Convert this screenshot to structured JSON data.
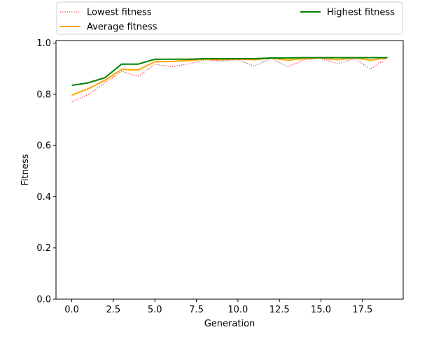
{
  "chart_data": {
    "type": "line",
    "xlabel": "Generation",
    "ylabel": "Fitness",
    "xlim": [
      -0.95,
      19.95
    ],
    "ylim": [
      0.0,
      1.01
    ],
    "xticks": [
      0.0,
      2.5,
      5.0,
      7.5,
      10.0,
      12.5,
      15.0,
      17.5
    ],
    "xtick_labels": [
      "0.0",
      "2.5",
      "5.0",
      "7.5",
      "10.0",
      "12.5",
      "15.0",
      "17.5"
    ],
    "yticks": [
      0.0,
      0.2,
      0.4,
      0.6,
      0.8,
      1.0
    ],
    "ytick_labels": [
      "0.0",
      "0.2",
      "0.4",
      "0.6",
      "0.8",
      "1.0"
    ],
    "grid": false,
    "legend_position": "top, above plot, two columns",
    "x": [
      0,
      1,
      2,
      3,
      4,
      5,
      6,
      7,
      8,
      9,
      10,
      11,
      12,
      13,
      14,
      15,
      16,
      17,
      18,
      19
    ],
    "series": [
      {
        "name": "Lowest fitness",
        "color": "#ff0000",
        "style": "dotted",
        "values": [
          0.77,
          0.8,
          0.845,
          0.89,
          0.87,
          0.917,
          0.908,
          0.918,
          0.935,
          0.93,
          0.935,
          0.91,
          0.94,
          0.908,
          0.935,
          0.94,
          0.92,
          0.94,
          0.898,
          0.943
        ]
      },
      {
        "name": "Average fitness",
        "color": "#ffa500",
        "style": "solid",
        "values": [
          0.797,
          0.822,
          0.855,
          0.897,
          0.895,
          0.927,
          0.928,
          0.932,
          0.937,
          0.935,
          0.937,
          0.935,
          0.942,
          0.933,
          0.94,
          0.943,
          0.935,
          0.943,
          0.933,
          0.943
        ]
      },
      {
        "name": "Highest fitness",
        "color": "#008000",
        "style": "solid",
        "values": [
          0.835,
          0.845,
          0.865,
          0.918,
          0.918,
          0.937,
          0.937,
          0.937,
          0.939,
          0.939,
          0.939,
          0.939,
          0.942,
          0.942,
          0.943,
          0.943,
          0.943,
          0.943,
          0.943,
          0.943
        ]
      }
    ]
  }
}
